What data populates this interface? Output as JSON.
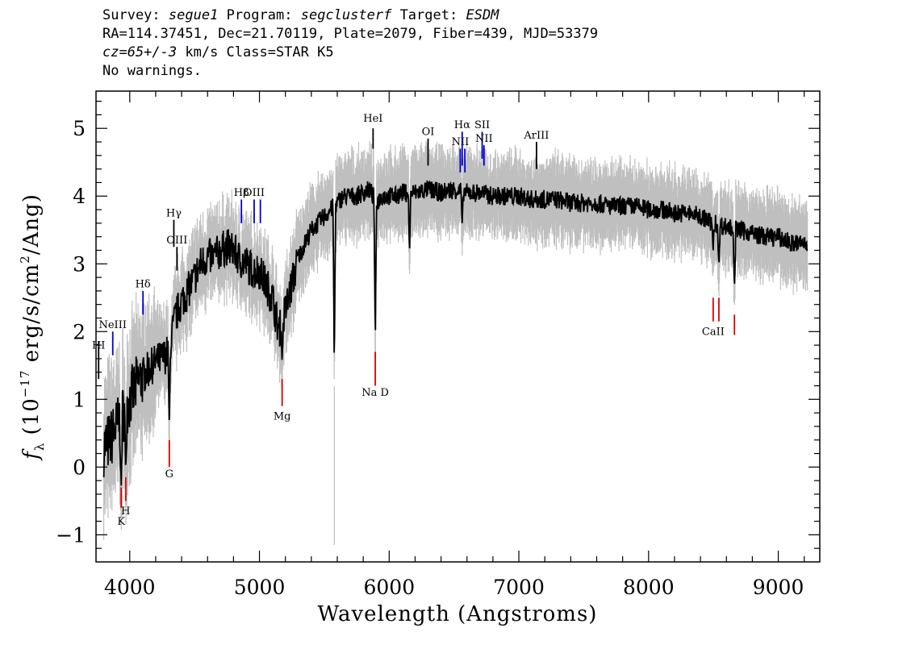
{
  "header": {
    "survey_label": "Survey:",
    "survey": "segue1",
    "program_label": "Program:",
    "program": "segclusterf",
    "target_label": "Target:",
    "target": "ESDM",
    "line2": "RA=114.37451, Dec=21.70119, Plate=2079, Fiber=439, MJD=53379",
    "cz": "cz=65+/-3",
    "line3_rest": " km/s Class=STAR K5",
    "line4": "No warnings."
  },
  "chart_data": {
    "type": "line",
    "xlabel": "Wavelength (Angstroms)",
    "ylabel": "f_λ (10^-17 erg/s/cm^2/Ang)",
    "xlim": [
      3740,
      9320
    ],
    "ylim": [
      -1.4,
      5.55
    ],
    "xticks": [
      4000,
      5000,
      6000,
      7000,
      8000,
      9000
    ],
    "yticks": [
      -1,
      0,
      1,
      2,
      3,
      4,
      5
    ],
    "colors": {
      "flux": "#000000",
      "noise": "#bfbfbf",
      "emission": "#0000cc",
      "absorption": "#dd0000",
      "sky": "#000000"
    },
    "series": [
      {
        "name": "",
        "x": [
          3800,
          3850,
          3900,
          3950,
          4000,
          4050,
          4100,
          4150,
          4200,
          4250,
          4300,
          4350,
          4400,
          4450,
          4500,
          4550,
          4600,
          4650,
          4700,
          4750,
          4800,
          4850,
          4900,
          4950,
          5000,
          5050,
          5100,
          5150,
          5200,
          5250,
          5300,
          5350,
          5400,
          5450,
          5500,
          5550,
          5600,
          5650,
          5700,
          5750,
          5800,
          5850,
          5900,
          5950,
          6000,
          6050,
          6100,
          6150,
          6200,
          6300,
          6400,
          6500,
          6600,
          6700,
          6800,
          6900,
          7000,
          7100,
          7200,
          7300,
          7400,
          7500,
          7600,
          7700,
          7800,
          7900,
          8000,
          8100,
          8200,
          8300,
          8400,
          8500,
          8600,
          8700,
          8800,
          8900,
          9000,
          9100,
          9200
        ],
        "y": [
          0.3,
          0.4,
          0.6,
          0.8,
          1.0,
          1.2,
          1.35,
          1.45,
          1.55,
          1.6,
          1.7,
          2.2,
          2.45,
          2.6,
          2.8,
          3.0,
          3.1,
          3.1,
          3.2,
          3.25,
          3.2,
          3.05,
          3.0,
          2.9,
          2.9,
          2.7,
          2.5,
          2.0,
          2.3,
          2.7,
          3.1,
          3.3,
          3.5,
          3.6,
          3.7,
          3.8,
          3.9,
          4.0,
          4.0,
          4.0,
          4.05,
          4.1,
          3.9,
          4.0,
          4.0,
          4.0,
          4.05,
          4.05,
          4.05,
          4.1,
          4.05,
          4.1,
          4.05,
          4.05,
          4.0,
          4.0,
          4.0,
          3.95,
          3.95,
          3.95,
          3.9,
          3.9,
          3.9,
          3.85,
          3.85,
          3.85,
          3.8,
          3.8,
          3.75,
          3.75,
          3.7,
          3.6,
          3.55,
          3.5,
          3.45,
          3.4,
          3.4,
          3.3,
          3.3
        ]
      }
    ],
    "absorption_dips": [
      {
        "x": 3934,
        "y": -0.4
      },
      {
        "x": 3969,
        "y": -0.1
      },
      {
        "x": 4305,
        "y": 0.55
      },
      {
        "x": 5175,
        "y": 1.55
      },
      {
        "x": 5577,
        "y": 1.45
      },
      {
        "x": 5893,
        "y": 1.8
      },
      {
        "x": 6157,
        "y": 3.15
      },
      {
        "x": 6563,
        "y": 3.6
      },
      {
        "x": 8498,
        "y": 3.2
      },
      {
        "x": 8542,
        "y": 2.95
      },
      {
        "x": 8662,
        "y": 2.6
      }
    ],
    "emission_lines": [
      {
        "label": "HI",
        "x": 3760,
        "y0": 1.3,
        "y1": 1.85,
        "label_y": 1.75
      },
      {
        "label": "NeIII",
        "x": 3869,
        "y0": 1.65,
        "y1": 2.0,
        "label_y": 2.05
      },
      {
        "label": "Hδ",
        "x": 4102,
        "y0": 2.25,
        "y1": 2.6,
        "label_y": 2.65
      },
      {
        "label": "Hγ",
        "x": 4340,
        "y0": 3.25,
        "y1": 3.65,
        "label_y": 3.7
      },
      {
        "label": "OIII",
        "x": 4364,
        "y0": 2.9,
        "y1": 3.25,
        "label_y": 3.3
      },
      {
        "label": "Hβ",
        "x": 4861,
        "y0": 3.6,
        "y1": 3.95,
        "label_y": 4.0
      },
      {
        "label": "OIII",
        "x": 4959,
        "y0": 3.6,
        "y1": 3.95,
        "label_y": 4.0
      },
      {
        "label": "",
        "x": 5007,
        "y0": 3.6,
        "y1": 3.95,
        "label_y": 4.0
      },
      {
        "label": "HeI",
        "x": 5876,
        "y0": 4.7,
        "y1": 5.0,
        "label_y": 5.1
      },
      {
        "label": "OI",
        "x": 6300,
        "y0": 4.45,
        "y1": 4.85,
        "label_y": 4.9
      },
      {
        "label": "NII",
        "x": 6548,
        "y0": 4.35,
        "y1": 4.7,
        "label_y": 4.75
      },
      {
        "label": "Hα",
        "x": 6563,
        "y0": 4.45,
        "y1": 4.95,
        "label_y": 5.0
      },
      {
        "label": "",
        "x": 6584,
        "y0": 4.35,
        "y1": 4.7,
        "label_y": 4.75
      },
      {
        "label": "SII",
        "x": 6717,
        "y0": 4.55,
        "y1": 4.95,
        "label_y": 5.0
      },
      {
        "label": "NII",
        "x": 6731,
        "y0": 4.45,
        "y1": 4.75,
        "label_y": 4.8
      },
      {
        "label": "ArIII",
        "x": 7136,
        "y0": 4.4,
        "y1": 4.8,
        "label_y": 4.85
      }
    ],
    "absorption_lines": [
      {
        "label": "K",
        "x": 3934,
        "y0": -0.6,
        "y1": -0.3,
        "label_y": -0.85
      },
      {
        "label": "H",
        "x": 3969,
        "y0": -0.5,
        "y1": -0.15,
        "label_y": -0.7
      },
      {
        "label": "G",
        "x": 4305,
        "y0": 0.0,
        "y1": 0.4,
        "label_y": -0.15
      },
      {
        "label": "Mg",
        "x": 5175,
        "y0": 0.9,
        "y1": 1.3,
        "label_y": 0.7
      },
      {
        "label": "Na D",
        "x": 5893,
        "y0": 1.2,
        "y1": 1.7,
        "label_y": 1.05
      },
      {
        "label": "CaII",
        "x": 8498,
        "y0": 2.15,
        "y1": 2.5,
        "label_y": 1.95
      },
      {
        "label": "",
        "x": 8542,
        "y0": 2.15,
        "y1": 2.5,
        "label_y": 1.95
      },
      {
        "label": "",
        "x": 8662,
        "y0": 1.95,
        "y1": 2.25,
        "label_y": 1.95
      }
    ]
  }
}
